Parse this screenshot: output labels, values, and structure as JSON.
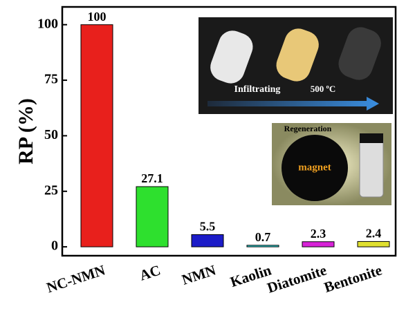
{
  "chart_data": {
    "type": "bar",
    "y_label": "RP (%)",
    "categories": [
      "NC-NMN",
      "AC",
      "NMN",
      "Kaolin",
      "Diatomite",
      "Bentonite"
    ],
    "values": [
      100,
      27.1,
      5.5,
      0.7,
      2.3,
      2.4
    ],
    "colors": [
      "#e8201c",
      "#2ee02e",
      "#1c1cc8",
      "#30dada",
      "#d822d8",
      "#e0e030"
    ],
    "ylim": [
      -4,
      108
    ],
    "yticks": [
      0,
      25,
      50,
      75,
      100
    ],
    "annotations": [
      "Infiltrating",
      "500 ºC",
      "Regeneration",
      "magnet"
    ]
  }
}
